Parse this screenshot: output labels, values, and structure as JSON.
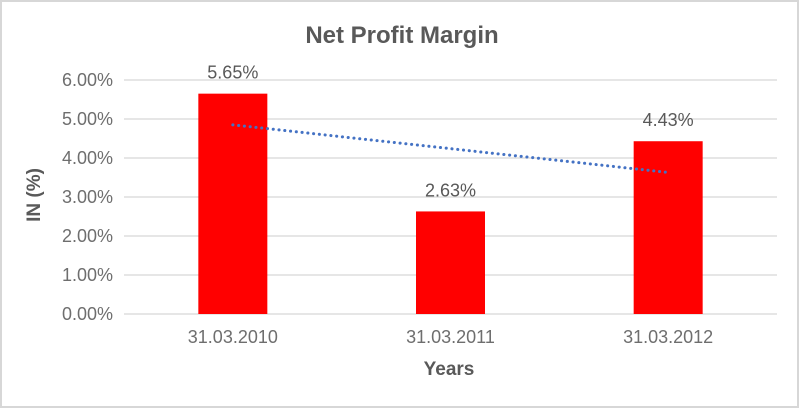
{
  "chart_data": {
    "type": "bar",
    "title": "Net Profit Margin",
    "xlabel": "Years",
    "ylabel": "IN (%)",
    "categories": [
      "31.03.2010",
      "31.03.2011",
      "31.03.2012"
    ],
    "values": [
      5.65,
      2.63,
      4.43
    ],
    "data_labels": [
      "5.65%",
      "2.63%",
      "4.43%"
    ],
    "yticks": [
      0,
      1,
      2,
      3,
      4,
      5,
      6
    ],
    "ytick_labels": [
      "0.00%",
      "1.00%",
      "2.00%",
      "3.00%",
      "4.00%",
      "5.00%",
      "6.00%"
    ],
    "ylim": [
      0,
      6.5
    ],
    "grid": true,
    "legend_position": "none",
    "bar_color": "#FF0000",
    "trendline": {
      "type": "linear",
      "style": "dotted",
      "color": "#4472C4",
      "values": [
        4.85,
        4.24,
        3.63
      ]
    },
    "colors": {
      "title_text": "#595959",
      "axis_title_text": "#595959",
      "tick_text": "#6E6E6E",
      "data_label_text": "#595959",
      "gridline": "#D6D6D6",
      "border": "#D7D7D7",
      "background": "#FFFFFF"
    }
  }
}
